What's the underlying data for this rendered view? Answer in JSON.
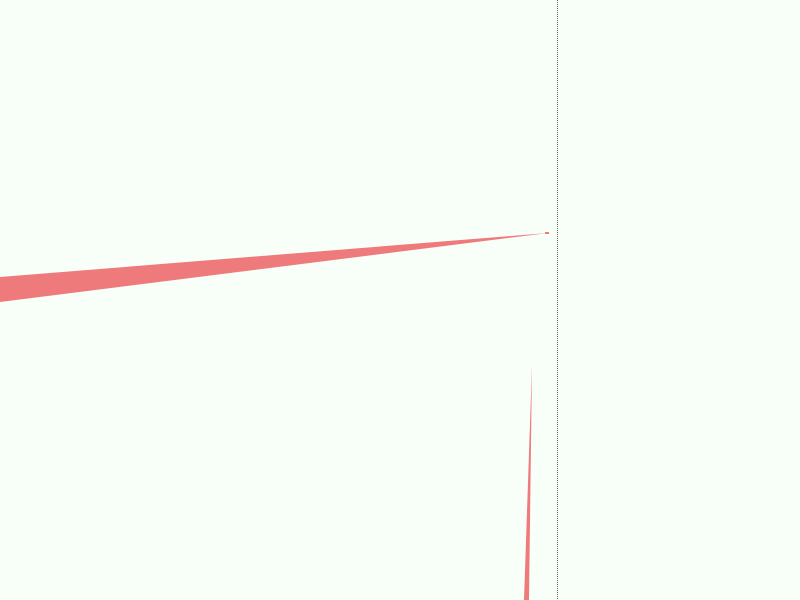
{
  "scene": {
    "background_color": "#f8fff8",
    "wedge_color": "#ef7a7c",
    "divider_color": "#6f5a5a"
  }
}
